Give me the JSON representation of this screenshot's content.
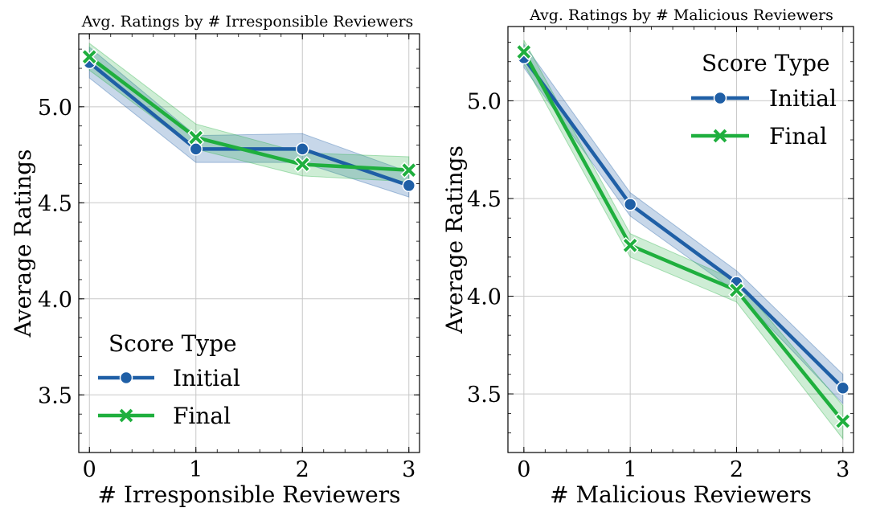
{
  "chart_data": [
    {
      "type": "line",
      "title": "Avg. Ratings by # Irresponsible Reviewers",
      "xlabel": "# Irresponsible Reviewers",
      "ylabel": "Average Ratings",
      "x": [
        0,
        1,
        2,
        3
      ],
      "xlim": [
        -0.1,
        3.1
      ],
      "ylim": [
        3.2,
        5.38
      ],
      "xticks": [
        "0",
        "1",
        "2",
        "3"
      ],
      "yticks": [
        "3.5",
        "4.0",
        "4.5",
        "5.0"
      ],
      "grid": true,
      "legend": {
        "title": "Score Type",
        "placement": "lower-left"
      },
      "series": [
        {
          "name": "Initial",
          "color": "#1f5fa6",
          "marker": "circle",
          "values": [
            5.23,
            4.78,
            4.78,
            4.59
          ],
          "ci_low": [
            5.15,
            4.71,
            4.71,
            4.53
          ],
          "ci_high": [
            5.31,
            4.85,
            4.86,
            4.66
          ]
        },
        {
          "name": "Final",
          "color": "#1faf3e",
          "marker": "x",
          "values": [
            5.26,
            4.84,
            4.7,
            4.67
          ],
          "ci_low": [
            5.19,
            4.78,
            4.64,
            4.61
          ],
          "ci_high": [
            5.33,
            4.91,
            4.76,
            4.74
          ]
        }
      ]
    },
    {
      "type": "line",
      "title": "Avg. Ratings by # Malicious Reviewers",
      "xlabel": "# Malicious Reviewers",
      "ylabel": "Average Ratings",
      "x": [
        0,
        1,
        2,
        3
      ],
      "xlim": [
        -0.15,
        3.1
      ],
      "ylim": [
        3.2,
        5.38
      ],
      "xticks": [
        "0",
        "1",
        "2",
        "3"
      ],
      "yticks": [
        "3.5",
        "4.0",
        "4.5",
        "5.0"
      ],
      "grid": true,
      "legend": {
        "title": "Score Type",
        "placement": "upper-right"
      },
      "series": [
        {
          "name": "Initial",
          "color": "#1f5fa6",
          "marker": "circle",
          "values": [
            5.22,
            4.47,
            4.07,
            3.53
          ],
          "ci_low": [
            5.17,
            4.41,
            4.02,
            3.45
          ],
          "ci_high": [
            5.29,
            4.53,
            4.13,
            3.6
          ]
        },
        {
          "name": "Final",
          "color": "#1faf3e",
          "marker": "x",
          "values": [
            5.25,
            4.26,
            4.03,
            3.36
          ],
          "ci_low": [
            5.19,
            4.2,
            3.97,
            3.27
          ],
          "ci_high": [
            5.31,
            4.32,
            4.08,
            3.44
          ]
        }
      ]
    }
  ]
}
